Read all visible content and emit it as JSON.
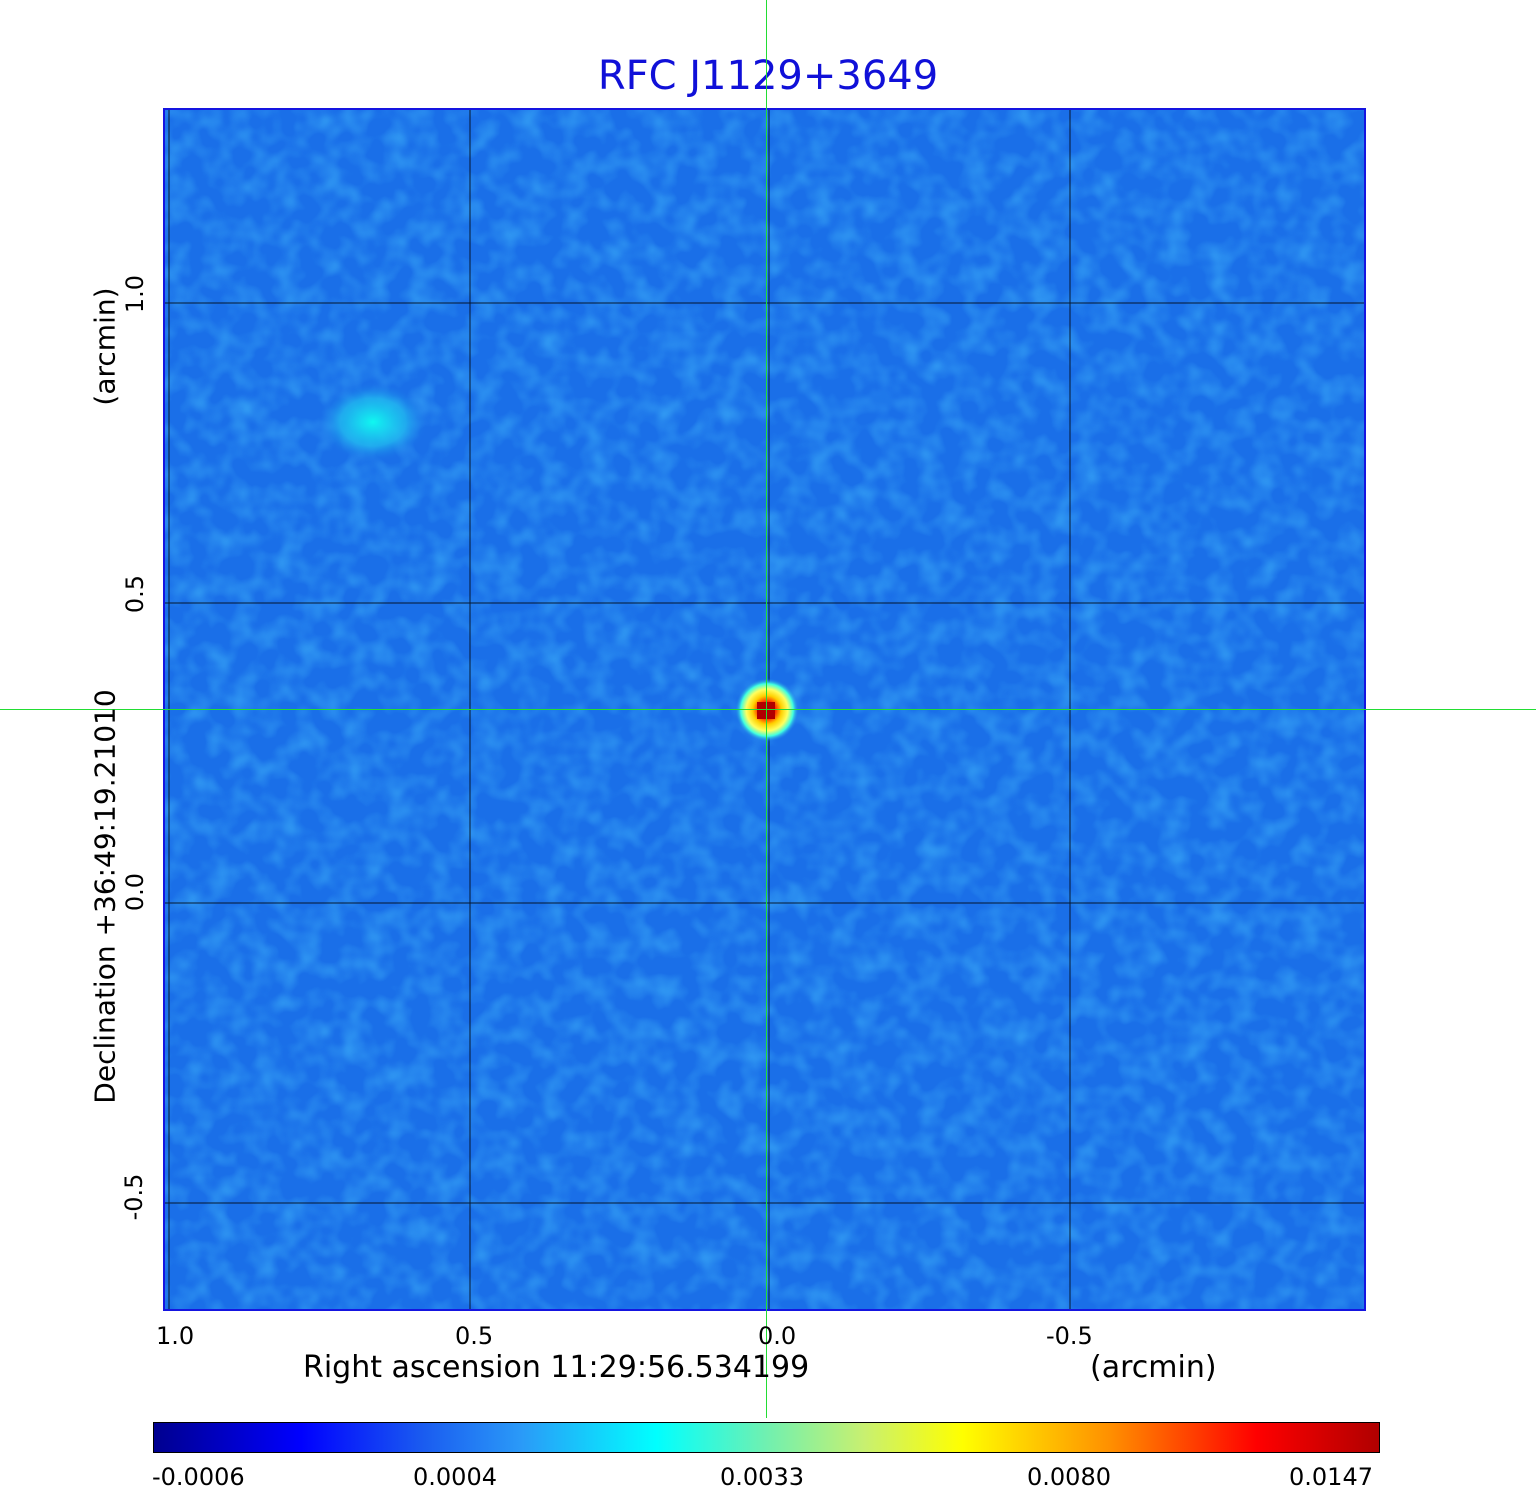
{
  "title": "RFC J1129+3649",
  "x_axis": {
    "label": "Right ascension  11:29:56.534199",
    "unit": "(arcmin)",
    "ticks": [
      "1.0",
      "0.5",
      "0.0",
      "-0.5"
    ]
  },
  "y_axis": {
    "label": "Declination  +36:49:19.21010",
    "unit": "(arcmin)",
    "ticks": [
      "1.0",
      "0.5",
      "0.0",
      "-0.5"
    ]
  },
  "colorbar": {
    "ticks": [
      "-0.0006",
      "0.0004",
      "0.0033",
      "0.0080",
      "0.0147"
    ]
  },
  "colors": {
    "title": "#1010d8",
    "background_map": "#1a6fe8",
    "crosshair": "#22dd33",
    "source_peak": "#cc0000"
  }
}
